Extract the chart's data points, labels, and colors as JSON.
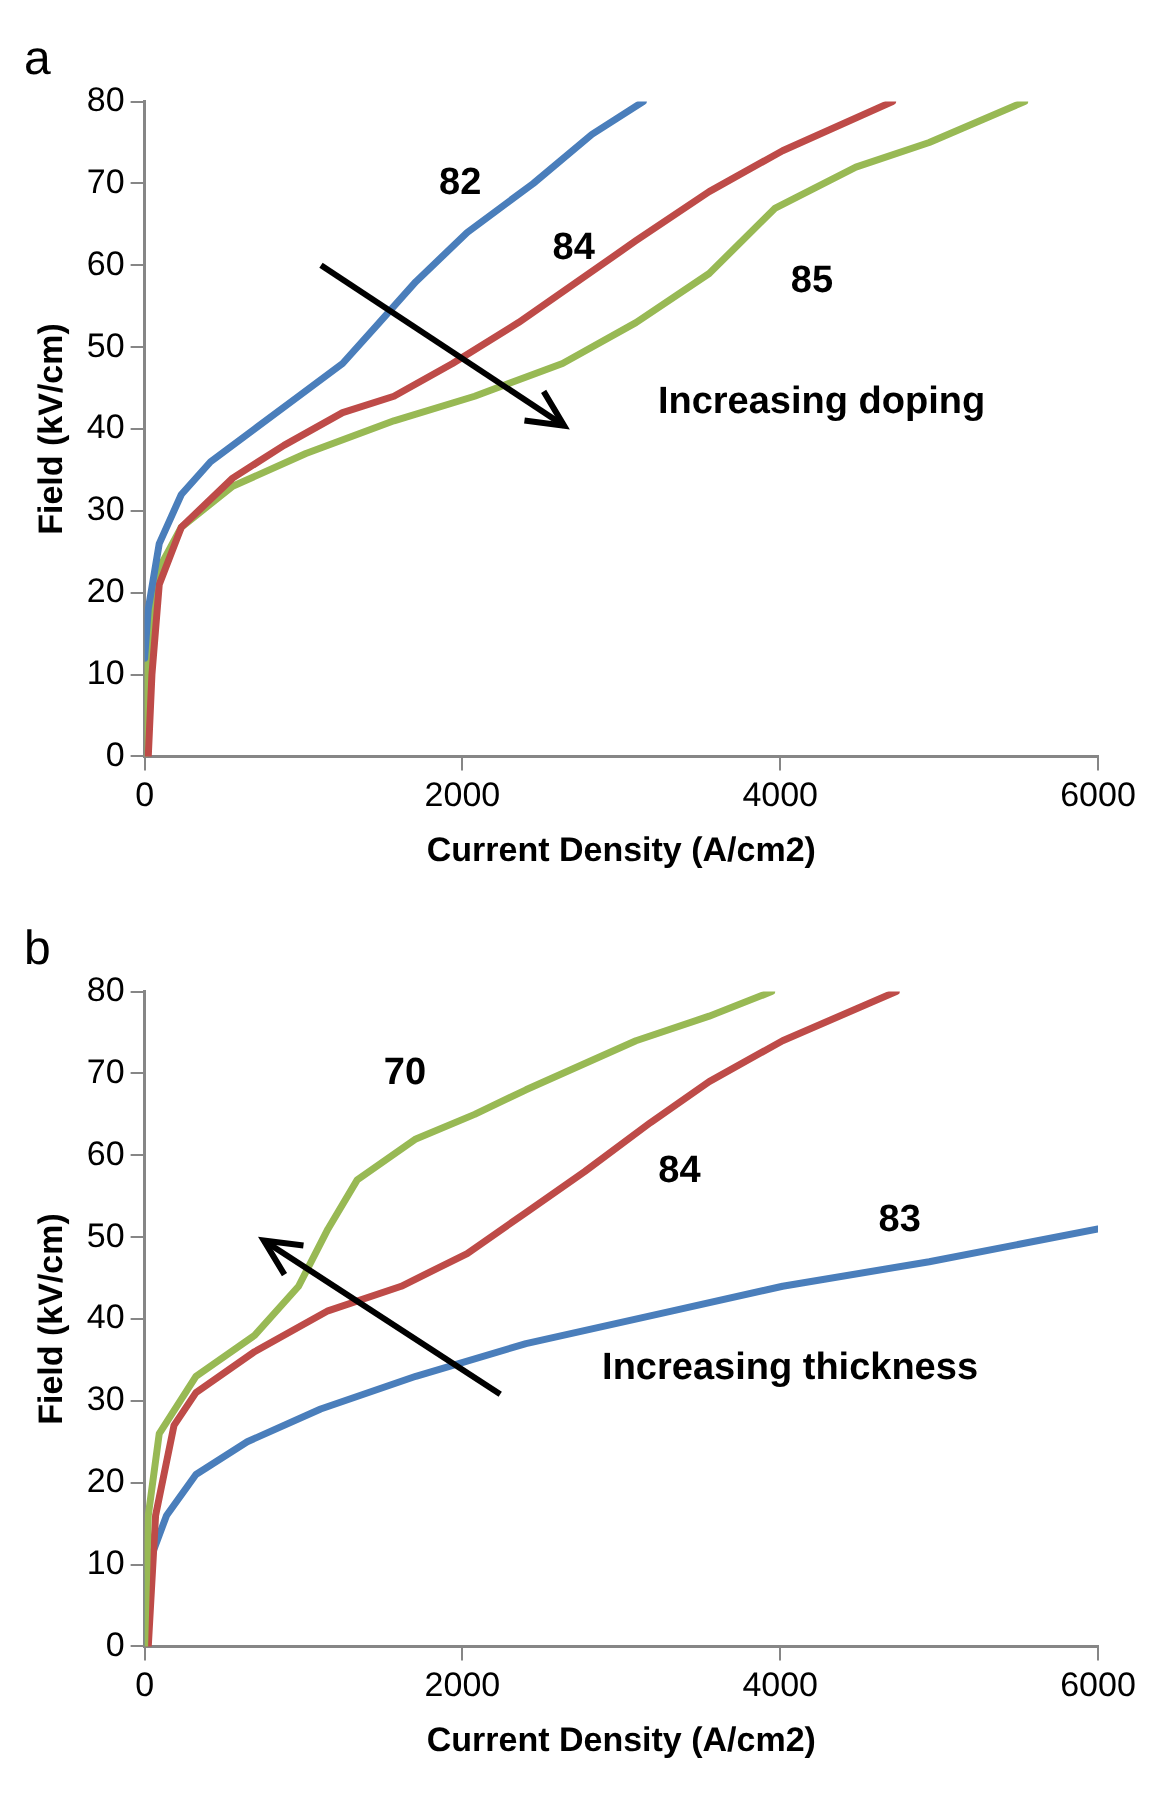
{
  "chart_data": [
    {
      "type": "line",
      "title": "a",
      "xlabel": "Current Density (A/cm2)",
      "ylabel": "Field (kV/cm)",
      "xlim": [
        0,
        6000
      ],
      "xticks": [
        0,
        2000,
        4000,
        6000
      ],
      "ylim": [
        0,
        80
      ],
      "yticks": [
        0,
        10,
        20,
        30,
        40,
        50,
        60,
        70,
        80
      ],
      "marker": "none",
      "line_style": "solid",
      "series": [
        {
          "name": "82",
          "color": "#4a7ebb",
          "x": [
            0,
            23,
            92,
            231,
            415,
            692,
            969,
            1246,
            1477,
            1707,
            2030,
            2446,
            2815,
            3138
          ],
          "values": [
            12,
            18,
            26,
            32,
            36,
            40,
            44,
            48,
            53,
            58,
            64,
            70,
            76,
            80
          ]
        },
        {
          "name": "84",
          "color": "#be4b48",
          "x": [
            23,
            46,
            92,
            231,
            554,
            877,
            1246,
            1569,
            1938,
            2353,
            2723,
            3092,
            3553,
            4015,
            4707
          ],
          "values": [
            0,
            10,
            21,
            28,
            34,
            38,
            42,
            44,
            48,
            53,
            58,
            63,
            69,
            74,
            80
          ]
        },
        {
          "name": "85",
          "color": "#98b954",
          "x": [
            0,
            23,
            92,
            231,
            554,
            1015,
            1569,
            2077,
            2630,
            3092,
            3553,
            3969,
            4476,
            4938,
            5538
          ],
          "values": [
            0,
            14,
            23,
            28,
            33,
            37,
            41,
            44,
            48,
            53,
            59,
            67,
            72,
            75,
            80
          ]
        }
      ],
      "annotations": [
        "Increasing doping"
      ]
    },
    {
      "type": "line",
      "title": "b",
      "xlabel": "Current Density (A/cm2)",
      "ylabel": "Field (kV/cm)",
      "xlim": [
        0,
        6000
      ],
      "xticks": [
        0,
        2000,
        4000,
        6000
      ],
      "ylim": [
        0,
        80
      ],
      "yticks": [
        0,
        10,
        20,
        30,
        40,
        50,
        60,
        70,
        80
      ],
      "marker": "none",
      "line_style": "solid",
      "series": [
        {
          "name": "70",
          "color": "#98b954",
          "x": [
            0,
            23,
            92,
            323,
            692,
            969,
            1154,
            1338,
            1707,
            2077,
            2400,
            3092,
            3553,
            3946
          ],
          "values": [
            0,
            16,
            26,
            33,
            38,
            44,
            51,
            57,
            62,
            65,
            68,
            74,
            77,
            80
          ]
        },
        {
          "name": "84",
          "color": "#be4b48",
          "x": [
            23,
            69,
            185,
            323,
            692,
            1154,
            1615,
            2030,
            2400,
            2769,
            3184,
            3553,
            4015,
            4730
          ],
          "values": [
            0,
            16,
            27,
            31,
            36,
            41,
            44,
            48,
            53,
            58,
            64,
            69,
            74,
            80
          ]
        },
        {
          "name": "83",
          "color": "#4a7ebb",
          "x": [
            0,
            23,
            138,
            323,
            646,
            1108,
            1707,
            2400,
            3323,
            4015,
            4938,
            6000
          ],
          "values": [
            0,
            10,
            16,
            21,
            25,
            29,
            33,
            37,
            41,
            44,
            47,
            51
          ]
        }
      ],
      "annotations": [
        "Increasing thickness"
      ]
    }
  ]
}
